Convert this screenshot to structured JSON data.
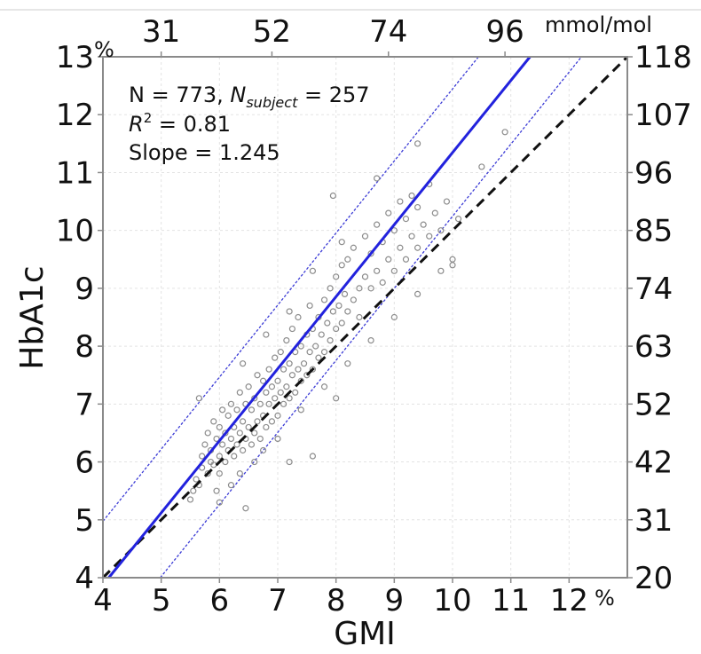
{
  "chart_data": {
    "type": "scatter",
    "xlabel": "GMI",
    "ylabel": "HbA1c",
    "xlim": [
      4,
      13
    ],
    "ylim": [
      4,
      13
    ],
    "x_unit": "%",
    "y_unit": "%",
    "x_ticks": [
      "4",
      "5",
      "6",
      "7",
      "8",
      "9",
      "10",
      "11",
      "12"
    ],
    "y_ticks": [
      "4",
      "5",
      "6",
      "7",
      "8",
      "9",
      "10",
      "11",
      "12",
      "13"
    ],
    "top_axis": {
      "unit": "mmol/mol",
      "ticks": [
        {
          "label": "31",
          "x": 5.0
        },
        {
          "label": "52",
          "x": 6.9
        },
        {
          "label": "74",
          "x": 8.9
        },
        {
          "label": "96",
          "x": 10.9
        }
      ]
    },
    "right_axis": {
      "ticks": [
        {
          "label": "20",
          "y": 4
        },
        {
          "label": "31",
          "y": 5
        },
        {
          "label": "42",
          "y": 6
        },
        {
          "label": "52",
          "y": 7
        },
        {
          "label": "63",
          "y": 8
        },
        {
          "label": "74",
          "y": 9
        },
        {
          "label": "85",
          "y": 10
        },
        {
          "label": "96",
          "y": 11
        },
        {
          "label": "107",
          "y": 12
        },
        {
          "label": "118",
          "y": 13
        }
      ]
    },
    "annotations": {
      "line1": "N = 773, ",
      "n_symbol": "N",
      "n_sub": "subject",
      "n_value": " = 257",
      "r_symbol": "R",
      "r_sup": "2",
      "r_value": " = 0.81",
      "slope": "Slope = 1.245"
    },
    "grid": true,
    "regression": {
      "slope": 1.245,
      "intercept": -1.105,
      "color": "#2222dd"
    },
    "prediction_band": {
      "offset": 1.1,
      "color": "#3b3bd6"
    },
    "identity_line": {
      "slope": 1,
      "intercept": 0,
      "color": "#111111",
      "style": "dashed"
    },
    "points_color": "#8c8c8c",
    "points": [
      [
        5.5,
        5.35
      ],
      [
        5.55,
        5.5
      ],
      [
        5.6,
        5.7
      ],
      [
        5.65,
        5.6
      ],
      [
        5.7,
        6.1
      ],
      [
        5.7,
        5.9
      ],
      [
        5.75,
        6.3
      ],
      [
        5.8,
        5.8
      ],
      [
        5.8,
        6.5
      ],
      [
        5.85,
        6.0
      ],
      [
        5.85,
        6.2
      ],
      [
        5.9,
        6.7
      ],
      [
        5.9,
        5.95
      ],
      [
        5.95,
        6.4
      ],
      [
        6.0,
        6.1
      ],
      [
        6.0,
        6.6
      ],
      [
        6.0,
        5.8
      ],
      [
        6.05,
        6.3
      ],
      [
        6.05,
        6.9
      ],
      [
        6.1,
        6.0
      ],
      [
        6.1,
        6.5
      ],
      [
        6.15,
        6.2
      ],
      [
        6.15,
        6.8
      ],
      [
        6.2,
        6.4
      ],
      [
        6.2,
        7.0
      ],
      [
        6.25,
        6.1
      ],
      [
        6.25,
        6.6
      ],
      [
        6.3,
        6.3
      ],
      [
        6.3,
        6.9
      ],
      [
        6.35,
        6.5
      ],
      [
        6.35,
        7.2
      ],
      [
        6.4,
        6.2
      ],
      [
        6.4,
        6.7
      ],
      [
        6.45,
        6.4
      ],
      [
        6.45,
        7.0
      ],
      [
        6.5,
        6.6
      ],
      [
        6.5,
        7.3
      ],
      [
        6.55,
        6.3
      ],
      [
        6.55,
        6.9
      ],
      [
        6.6,
        6.5
      ],
      [
        6.6,
        7.1
      ],
      [
        6.65,
        6.7
      ],
      [
        6.65,
        7.5
      ],
      [
        6.7,
        6.4
      ],
      [
        6.7,
        7.0
      ],
      [
        6.75,
        6.8
      ],
      [
        6.75,
        7.4
      ],
      [
        6.8,
        6.6
      ],
      [
        6.8,
        7.2
      ],
      [
        6.85,
        7.0
      ],
      [
        6.85,
        7.6
      ],
      [
        6.9,
        6.7
      ],
      [
        6.9,
        7.3
      ],
      [
        6.95,
        7.1
      ],
      [
        6.95,
        7.8
      ],
      [
        7.0,
        6.8
      ],
      [
        7.0,
        7.4
      ],
      [
        7.05,
        7.2
      ],
      [
        7.05,
        7.9
      ],
      [
        7.1,
        7.0
      ],
      [
        7.1,
        7.6
      ],
      [
        7.15,
        7.3
      ],
      [
        7.15,
        8.1
      ],
      [
        7.2,
        7.1
      ],
      [
        7.2,
        7.7
      ],
      [
        7.25,
        7.5
      ],
      [
        7.25,
        8.3
      ],
      [
        7.3,
        7.2
      ],
      [
        7.3,
        7.9
      ],
      [
        7.35,
        7.6
      ],
      [
        7.35,
        8.5
      ],
      [
        7.4,
        7.4
      ],
      [
        7.4,
        8.0
      ],
      [
        7.45,
        7.7
      ],
      [
        7.5,
        7.5
      ],
      [
        7.5,
        8.2
      ],
      [
        7.55,
        7.9
      ],
      [
        7.55,
        8.7
      ],
      [
        7.6,
        7.6
      ],
      [
        7.6,
        8.3
      ],
      [
        7.65,
        8.0
      ],
      [
        7.7,
        7.8
      ],
      [
        7.7,
        8.5
      ],
      [
        7.75,
        8.2
      ],
      [
        7.8,
        7.9
      ],
      [
        7.8,
        8.8
      ],
      [
        7.85,
        8.4
      ],
      [
        7.9,
        8.1
      ],
      [
        7.9,
        9.0
      ],
      [
        7.95,
        8.6
      ],
      [
        8.0,
        8.3
      ],
      [
        8.0,
        9.2
      ],
      [
        8.05,
        8.7
      ],
      [
        8.1,
        8.4
      ],
      [
        8.1,
        9.4
      ],
      [
        8.15,
        8.9
      ],
      [
        8.2,
        8.6
      ],
      [
        8.2,
        9.5
      ],
      [
        8.3,
        8.8
      ],
      [
        8.3,
        9.7
      ],
      [
        8.4,
        9.0
      ],
      [
        8.4,
        8.5
      ],
      [
        8.5,
        9.2
      ],
      [
        8.5,
        9.9
      ],
      [
        8.6,
        9.0
      ],
      [
        8.6,
        9.6
      ],
      [
        8.7,
        9.3
      ],
      [
        8.7,
        10.1
      ],
      [
        8.8,
        9.1
      ],
      [
        8.8,
        9.8
      ],
      [
        8.9,
        9.5
      ],
      [
        8.9,
        10.3
      ],
      [
        9.0,
        9.3
      ],
      [
        9.0,
        10.0
      ],
      [
        9.1,
        9.7
      ],
      [
        9.1,
        10.5
      ],
      [
        9.2,
        9.5
      ],
      [
        9.2,
        10.2
      ],
      [
        9.3,
        9.9
      ],
      [
        9.3,
        10.6
      ],
      [
        9.4,
        9.7
      ],
      [
        9.4,
        10.4
      ],
      [
        9.5,
        10.1
      ],
      [
        9.6,
        9.9
      ],
      [
        9.6,
        10.8
      ],
      [
        9.7,
        10.3
      ],
      [
        9.8,
        10.0
      ],
      [
        9.9,
        10.5
      ],
      [
        10.0,
        9.5
      ],
      [
        10.1,
        10.2
      ],
      [
        5.65,
        7.1
      ],
      [
        6.0,
        5.3
      ],
      [
        6.45,
        5.2
      ],
      [
        7.2,
        6.0
      ],
      [
        7.6,
        6.1
      ],
      [
        8.0,
        7.1
      ],
      [
        7.95,
        10.6
      ],
      [
        8.7,
        10.9
      ],
      [
        9.4,
        11.5
      ],
      [
        10.9,
        11.7
      ],
      [
        10.5,
        11.1
      ],
      [
        10.0,
        9.4
      ],
      [
        6.2,
        5.6
      ],
      [
        6.6,
        6.0
      ],
      [
        7.0,
        6.4
      ],
      [
        7.4,
        6.9
      ],
      [
        7.8,
        7.3
      ],
      [
        8.2,
        7.7
      ],
      [
        8.6,
        8.1
      ],
      [
        9.0,
        8.5
      ],
      [
        9.4,
        8.9
      ],
      [
        9.8,
        9.3
      ],
      [
        6.4,
        7.7
      ],
      [
        6.8,
        8.2
      ],
      [
        7.2,
        8.6
      ],
      [
        7.6,
        9.3
      ],
      [
        8.1,
        9.8
      ],
      [
        5.95,
        5.5
      ],
      [
        6.35,
        5.8
      ],
      [
        6.75,
        6.2
      ]
    ]
  }
}
